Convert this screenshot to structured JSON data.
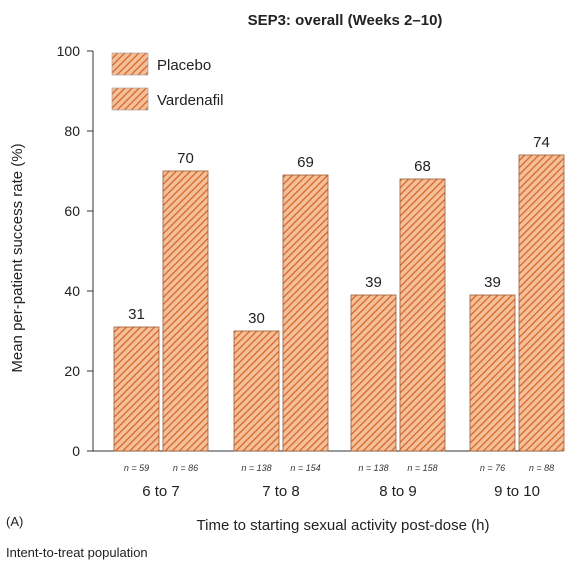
{
  "chart_data": {
    "type": "bar",
    "title": "SEP3: overall (Weeks 2–10)",
    "xlabel": "Time to starting sexual activity post-dose (h)",
    "ylabel": "Mean per-patient success rate (%)",
    "ylim": [
      0,
      100
    ],
    "yticks": [
      "0",
      "20",
      "40",
      "60",
      "80",
      "100"
    ],
    "categories": [
      "6 to 7",
      "7 to 8",
      "8 to 9",
      "9 to 10"
    ],
    "series": [
      {
        "name": "Placebo",
        "values": [
          31,
          30,
          39,
          39
        ],
        "labels": [
          "31",
          "30",
          "39",
          "39"
        ],
        "n_labels": [
          "n = 59",
          "n = 138",
          "n = 138",
          "n = 76"
        ]
      },
      {
        "name": "Vardenafil",
        "values": [
          70,
          69,
          68,
          74
        ],
        "labels": [
          "70",
          "69",
          "68",
          "74"
        ],
        "n_labels": [
          "n = 86",
          "n = 154",
          "n = 158",
          "n = 88"
        ]
      }
    ],
    "legend": "top-left",
    "grid": false,
    "bar_color": "#e07a3c",
    "panel_label": "(A)",
    "footnote": "Intent-to-treat population"
  }
}
